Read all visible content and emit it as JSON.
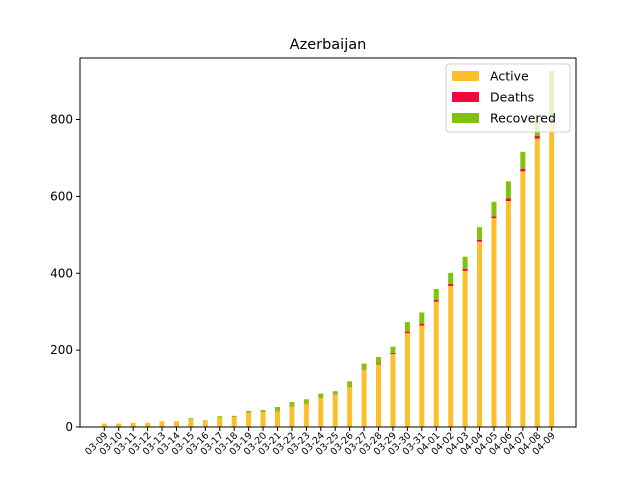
{
  "chart_data": {
    "type": "bar",
    "stacked": true,
    "title": "Azerbaijan",
    "xlabel": "",
    "ylabel": "",
    "ylim": [
      0,
      960
    ],
    "yticks": [
      0,
      200,
      400,
      600,
      800
    ],
    "grid": false,
    "legend_position": "top-right",
    "categories": [
      "03-09",
      "03-10",
      "03-11",
      "03-12",
      "03-13",
      "03-14",
      "03-15",
      "03-16",
      "03-17",
      "03-18",
      "03-19",
      "03-20",
      "03-21",
      "03-22",
      "03-23",
      "03-24",
      "03-25",
      "03-26",
      "03-27",
      "03-28",
      "03-29",
      "03-30",
      "03-31",
      "04-01",
      "04-02",
      "04-03",
      "04-04",
      "04-05",
      "04-06",
      "04-07",
      "04-08",
      "04-09"
    ],
    "series": [
      {
        "name": "Active",
        "color": "#fbbf2c",
        "values": [
          9,
          9,
          11,
          11,
          15,
          15,
          21,
          15,
          25,
          26,
          37,
          39,
          41,
          53,
          61,
          76,
          84,
          104,
          150,
          163,
          190,
          244,
          264,
          326,
          367,
          406,
          482,
          543,
          588,
          665,
          750,
          795
        ]
      },
      {
        "name": "Deaths",
        "color": "#f0073b",
        "values": [
          0,
          0,
          0,
          0,
          0,
          0,
          0,
          0,
          0,
          0,
          0,
          0,
          1,
          1,
          1,
          1,
          1,
          1,
          1,
          2,
          3,
          4,
          4,
          5,
          5,
          5,
          5,
          5,
          7,
          7,
          7,
          8
        ]
      },
      {
        "name": "Recovered",
        "color": "#82c20a",
        "values": [
          0,
          0,
          0,
          0,
          0,
          0,
          2,
          2,
          3,
          3,
          5,
          5,
          10,
          11,
          10,
          10,
          8,
          14,
          14,
          17,
          16,
          25,
          30,
          28,
          29,
          32,
          33,
          38,
          44,
          44,
          43,
          123
        ]
      }
    ]
  }
}
